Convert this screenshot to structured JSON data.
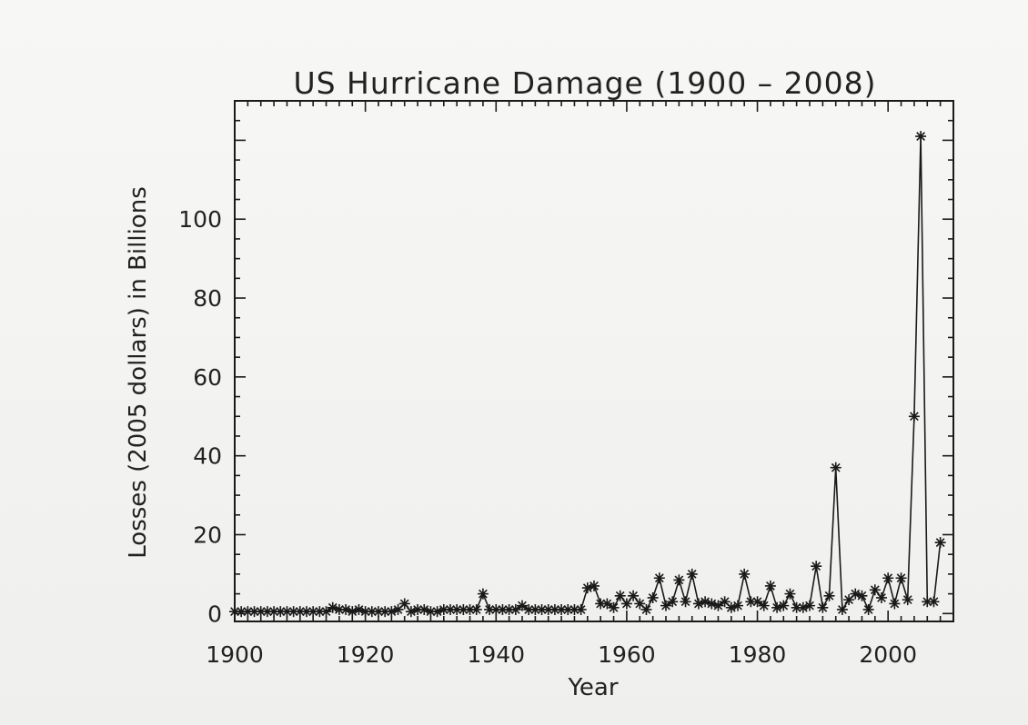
{
  "chart_data": {
    "type": "line",
    "title": "US Hurricane Damage (1900 – 2008)",
    "xlabel": "Year",
    "ylabel": "Losses (2005 dollars) in Billions",
    "xlim": [
      1900,
      2010
    ],
    "ylim": [
      -2,
      130
    ],
    "x_ticks": [
      1900,
      1920,
      1940,
      1960,
      1980,
      2000
    ],
    "y_ticks": [
      0,
      20,
      40,
      60,
      80,
      100
    ],
    "x_tick_labels": [
      "1900",
      "1920",
      "1940",
      "1960",
      "1980",
      "2000"
    ],
    "y_tick_labels": [
      "0",
      "20",
      "40",
      "60",
      "80",
      "100"
    ],
    "marker": "asterisk",
    "grid": false,
    "legend": "none",
    "series": [
      {
        "x": [
          1900,
          1901,
          1902,
          1903,
          1904,
          1905,
          1906,
          1907,
          1908,
          1909,
          1910,
          1911,
          1912,
          1913,
          1914,
          1915,
          1916,
          1917,
          1918,
          1919,
          1920,
          1921,
          1922,
          1923,
          1924,
          1925,
          1926,
          1927,
          1928,
          1929,
          1930,
          1931,
          1932,
          1933,
          1934,
          1935,
          1936,
          1937,
          1938,
          1939,
          1940,
          1941,
          1942,
          1943,
          1944,
          1945,
          1946,
          1947,
          1948,
          1949,
          1950,
          1951,
          1952,
          1953,
          1954,
          1955,
          1956,
          1957,
          1958,
          1959,
          1960,
          1961,
          1962,
          1963,
          1964,
          1965,
          1966,
          1967,
          1968,
          1969,
          1970,
          1971,
          1972,
          1973,
          1974,
          1975,
          1976,
          1977,
          1978,
          1979,
          1980,
          1981,
          1982,
          1983,
          1984,
          1985,
          1986,
          1987,
          1988,
          1989,
          1990,
          1991,
          1992,
          1993,
          1994,
          1995,
          1996,
          1997,
          1998,
          1999,
          2000,
          2001,
          2002,
          2003,
          2004,
          2005,
          2006,
          2007,
          2008
        ],
        "y": [
          0.5,
          0.5,
          0.5,
          0.5,
          0.5,
          0.5,
          0.5,
          0.5,
          0.5,
          0.5,
          0.5,
          0.5,
          0.5,
          0.5,
          0.5,
          1.5,
          1,
          1,
          0.5,
          1,
          0.5,
          0.5,
          0.5,
          0.5,
          0.5,
          1,
          2.5,
          0.5,
          1,
          1,
          0.5,
          0.5,
          1,
          1,
          1,
          1,
          1,
          1,
          5,
          1,
          1,
          1,
          1,
          1,
          2,
          1,
          1,
          1,
          1,
          1,
          1,
          1,
          1,
          1,
          6.5,
          7,
          2.5,
          2.5,
          1.5,
          4.5,
          2.5,
          4.5,
          2.5,
          1,
          4,
          9,
          2,
          3,
          8.5,
          3,
          10,
          2.5,
          3,
          2.5,
          2,
          3,
          1.5,
          2,
          10,
          3,
          3,
          2,
          7,
          1.5,
          2,
          5,
          1.5,
          1.5,
          2,
          12,
          1.5,
          4.5,
          37,
          1,
          3.5,
          5,
          4.5,
          1,
          6,
          4,
          9,
          2.5,
          9,
          3.5,
          50,
          121,
          3,
          3,
          18
        ]
      }
    ]
  }
}
